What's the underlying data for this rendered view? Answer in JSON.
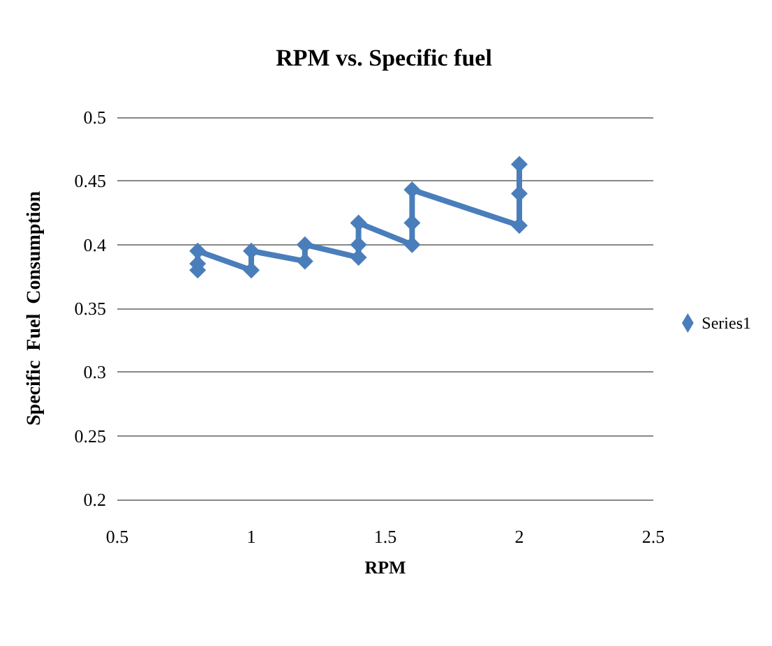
{
  "chart_data": {
    "type": "line",
    "title": "RPM vs. Specific fuel",
    "xlabel": "RPM",
    "ylabel": "Specific  Fuel  Consumption",
    "x": [
      0.8,
      0.8,
      0.8,
      1,
      1,
      1.2,
      1.2,
      1.4,
      1.4,
      1.4,
      1.6,
      1.6,
      1.6,
      2,
      2,
      2
    ],
    "series": [
      {
        "name": "Series1",
        "color": "#4a7ebb",
        "values": [
          0.38,
          0.385,
          0.395,
          0.38,
          0.395,
          0.387,
          0.4,
          0.39,
          0.4,
          0.417,
          0.4,
          0.417,
          0.443,
          0.415,
          0.44,
          0.463
        ]
      }
    ],
    "xlim": [
      0.5,
      2.5
    ],
    "xticks": [
      0.5,
      1,
      1.5,
      2,
      2.5
    ],
    "ylim": [
      0.2,
      0.5
    ],
    "yticks": [
      0.2,
      0.25,
      0.3,
      0.35,
      0.4,
      0.45,
      0.5
    ],
    "grid": "y",
    "legend": "right",
    "marker": "diamond",
    "line_style": "solid"
  }
}
